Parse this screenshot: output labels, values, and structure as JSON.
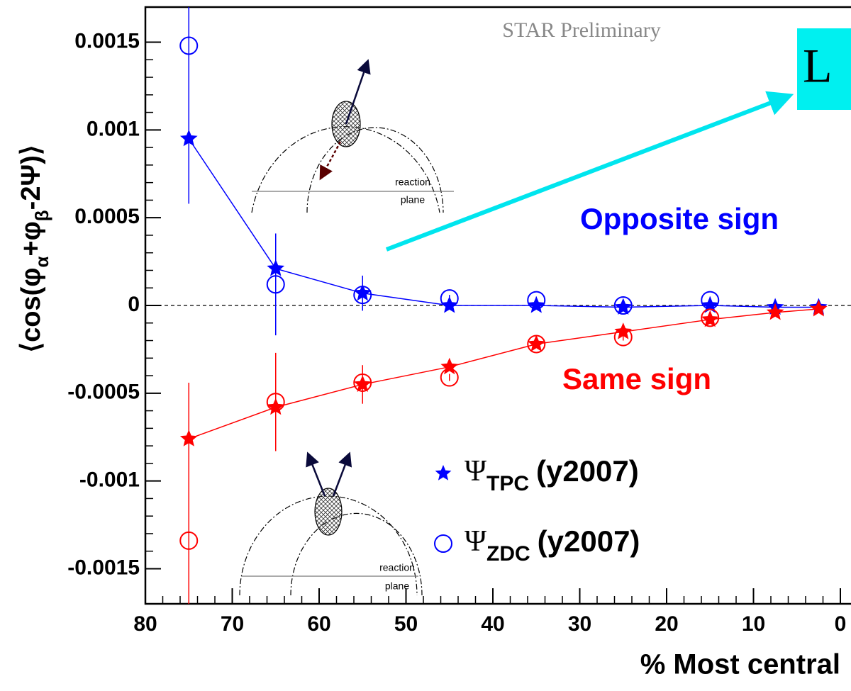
{
  "chart_data": {
    "type": "scatter",
    "xlim": [
      80,
      0
    ],
    "ylim": [
      -0.0017,
      0.0017
    ],
    "xticks": [
      80,
      70,
      60,
      50,
      40,
      30,
      20,
      10,
      0
    ],
    "yticks": [
      0.0015,
      0.001,
      0.0005,
      0,
      -0.0005,
      -0.001,
      -0.0015
    ],
    "xlabel": "% Most central",
    "ylabel": [
      {
        "text": "⟨cos(φ"
      },
      {
        "text": "α",
        "sub": true
      },
      {
        "text": "+φ"
      },
      {
        "text": "β",
        "sub": true
      },
      {
        "text": "-2Ψ)⟩"
      }
    ],
    "series": [
      {
        "marker": "star",
        "color": "#0000ff",
        "line": true,
        "x": [
          75,
          65,
          55,
          45,
          35,
          25,
          15,
          7.5,
          2.5
        ],
        "values": [
          0.00095,
          0.00021,
          7e-05,
          0.0,
          0.0,
          -1e-05,
          0.0,
          -1e-05,
          -1e-05
        ],
        "errors": [
          0.00037,
          0.0002,
          0.0001,
          2e-05,
          2e-05,
          2e-05,
          2e-05,
          1e-05,
          1e-05
        ]
      },
      {
        "marker": "circle",
        "color": "#0000ff",
        "line": false,
        "x": [
          75,
          65,
          55,
          45,
          35,
          25,
          15
        ],
        "values": [
          0.00148,
          0.00012,
          6e-05,
          4e-05,
          3e-05,
          0.0,
          3e-05
        ],
        "errors": [
          0.0009,
          0.00029,
          3e-05,
          2e-05,
          2e-05,
          2e-05,
          2e-05
        ]
      },
      {
        "marker": "star",
        "color": "#ff0000",
        "line": true,
        "x": [
          75,
          65,
          55,
          45,
          35,
          25,
          15,
          7.5,
          2.5
        ],
        "values": [
          -0.00076,
          -0.00058,
          -0.00045,
          -0.00035,
          -0.00022,
          -0.00015,
          -8e-05,
          -4e-05,
          -2e-05
        ],
        "errors": [
          0.00032,
          0.0001,
          0.00011,
          2e-05,
          2e-05,
          2e-05,
          2e-05,
          1e-05,
          1e-05
        ]
      },
      {
        "marker": "circle",
        "color": "#ff0000",
        "line": false,
        "x": [
          75,
          65,
          55,
          45,
          35,
          25,
          15
        ],
        "values": [
          -0.00134,
          -0.00055,
          -0.00044,
          -0.00041,
          -0.00022,
          -0.00018,
          -7e-05
        ],
        "errors": [
          0.0009,
          0.00028,
          3e-05,
          2e-05,
          2e-05,
          2e-05,
          2e-05
        ]
      }
    ],
    "legend": [
      {
        "marker": "star",
        "color": "#0000ff",
        "symbol": "Ψ",
        "sub": "TPC",
        "text": "(y2007)"
      },
      {
        "marker": "circle",
        "color": "#0000ff",
        "symbol": "Ψ",
        "sub": "ZDC",
        "text": "(y2007)"
      }
    ],
    "annotations": {
      "watermark": "STAR Preliminary",
      "opposite": "Opposite sign",
      "same": "Same sign",
      "box": "L",
      "diagram_top": [
        "reaction",
        "plane"
      ],
      "diagram_bottom": [
        "reaction",
        "plane"
      ]
    }
  }
}
